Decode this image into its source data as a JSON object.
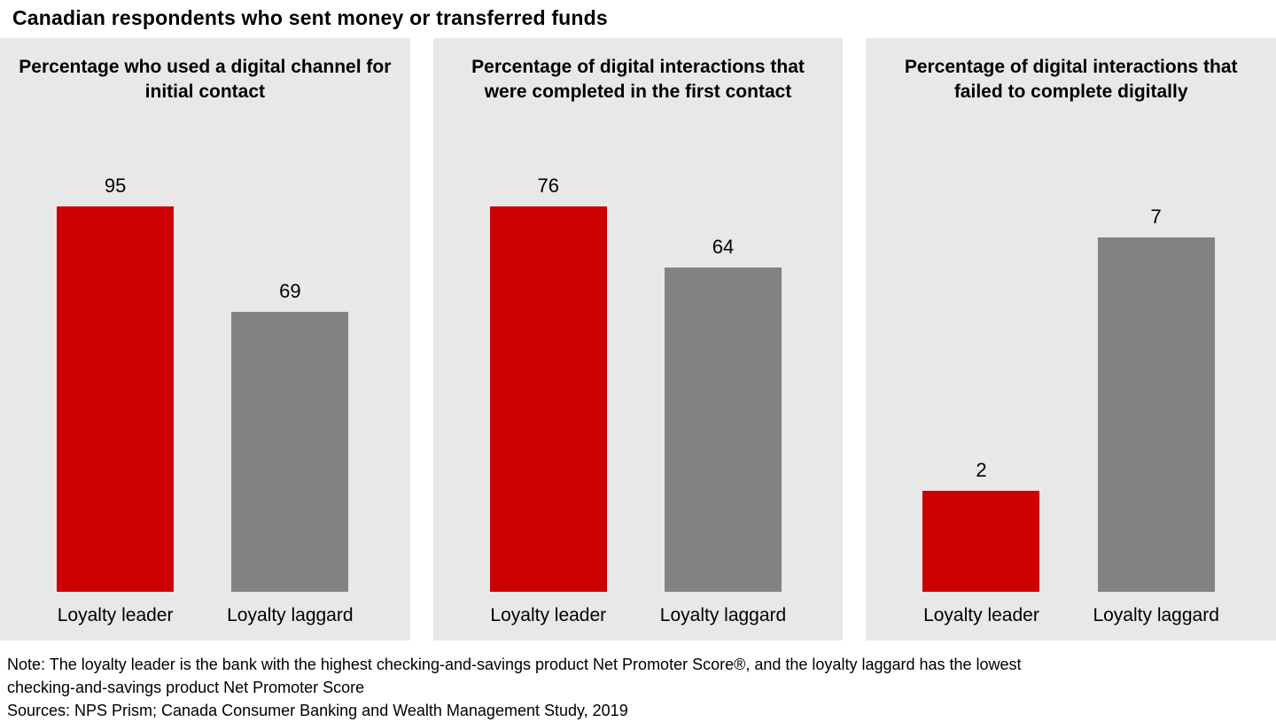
{
  "page": {
    "title": "Canadian respondents who sent money or transferred funds",
    "note_lines": [
      "Note: The loyalty leader is the bank with the highest checking-and-savings product Net Promoter Score®, and the loyalty laggard has the lowest",
      "checking-and-savings product Net Promoter Score"
    ],
    "sources": "Sources: NPS Prism; Canada Consumer Banking and Wealth Management Study, 2019"
  },
  "colors": {
    "leader_red": "#cc0000",
    "laggard_gray": "#828282",
    "panel_background": "#e8e8e8"
  },
  "chart_data": [
    {
      "type": "bar",
      "title": "Percentage who used a digital channel for initial contact",
      "categories": [
        "Loyalty leader",
        "Loyalty laggard"
      ],
      "values": [
        95,
        69
      ],
      "colors": [
        "#cc0000",
        "#828282"
      ],
      "grid": false,
      "legend": "none"
    },
    {
      "type": "bar",
      "title": "Percentage of digital interactions that were completed in the first contact",
      "categories": [
        "Loyalty leader",
        "Loyalty laggard"
      ],
      "values": [
        76,
        64
      ],
      "colors": [
        "#cc0000",
        "#828282"
      ],
      "grid": false,
      "legend": "none"
    },
    {
      "type": "bar",
      "title": "Percentage of digital interactions that failed to complete digitally",
      "categories": [
        "Loyalty leader",
        "Loyalty laggard"
      ],
      "values": [
        2,
        7
      ],
      "colors": [
        "#cc0000",
        "#828282"
      ],
      "grid": false,
      "legend": "none"
    }
  ]
}
